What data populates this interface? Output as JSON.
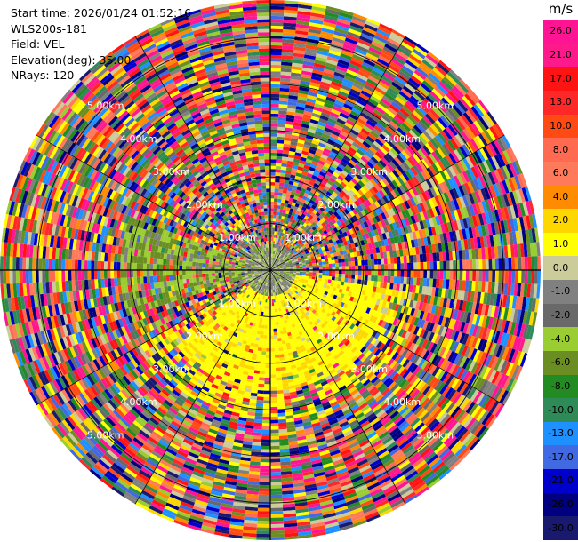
{
  "info": {
    "start_time": "Start time: 2026/01/24 01:52:16",
    "instrument": "WLS200s-181",
    "field": "Field: VEL",
    "elevation": "Elevation(deg): 35.00",
    "nrays": "NRays: 120"
  },
  "chart_data": {
    "type": "heatmap",
    "projection": "polar-ppi",
    "field": "VEL",
    "elevation_deg": 35.0,
    "nrays": 120,
    "range_rings_km": [
      1.0,
      2.0,
      3.0,
      4.0,
      5.0
    ],
    "range_ring_labels": [
      "1.00km",
      "2.00km",
      "3.00km",
      "4.00km",
      "5.00km"
    ],
    "max_range_km": 5.8,
    "colorbar": {
      "unit": "m/s",
      "ticks": [
        "26.0",
        "21.0",
        "17.0",
        "13.0",
        "10.0",
        "8.0",
        "6.0",
        "4.0",
        "2.0",
        "1.0",
        "0.0",
        "-1.0",
        "-2.0",
        "-4.0",
        "-6.0",
        "-8.0",
        "-10.0",
        "-13.0",
        "-17.0",
        "-21.0",
        "-26.0",
        "-30.0"
      ],
      "colors": [
        "#ff1493",
        "#ff1a8c",
        "#ff1414",
        "#ff2828",
        "#ff4a14",
        "#ff6a50",
        "#ff7a5a",
        "#ff8c00",
        "#ffd700",
        "#ffff00",
        "#cccc9a",
        "#808080",
        "#696969",
        "#9acd32",
        "#6b8e23",
        "#228b22",
        "#2e8b57",
        "#1e90ff",
        "#4169e1",
        "#0000cd",
        "#000080",
        "#191970"
      ]
    },
    "regions": [
      {
        "desc": "near-zero velocities close to radar",
        "range_km": [
          0.0,
          0.55
        ],
        "color_group": "grey-green"
      },
      {
        "desc": "positive low velocities to south",
        "azimuth_deg": [
          100,
          230
        ],
        "range_km": [
          0.0,
          2.6
        ],
        "color_group": "yellow"
      },
      {
        "desc": "negative low velocities to west",
        "azimuth_deg": [
          250,
          290
        ],
        "range_km": [
          0.3,
          3.2
        ],
        "color_group": "green"
      },
      {
        "desc": "folded / noisy outer region",
        "range_km": [
          0.55,
          5.8
        ],
        "color_group": "random"
      }
    ]
  }
}
